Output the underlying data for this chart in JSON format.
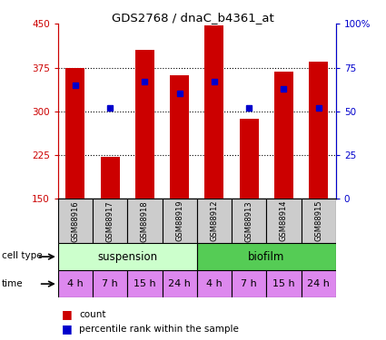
{
  "title": "GDS2768 / dnaC_b4361_at",
  "samples": [
    "GSM88916",
    "GSM88917",
    "GSM88918",
    "GSM88919",
    "GSM88912",
    "GSM88913",
    "GSM88914",
    "GSM88915"
  ],
  "count_values": [
    375,
    222,
    405,
    362,
    447,
    288,
    368,
    385
  ],
  "percentile_values": [
    65,
    52,
    67,
    60,
    67,
    52,
    63,
    52
  ],
  "y_min": 150,
  "y_max": 450,
  "y_ticks": [
    150,
    225,
    300,
    375,
    450
  ],
  "y2_ticks": [
    0,
    25,
    50,
    75,
    100
  ],
  "bar_color": "#cc0000",
  "blue_color": "#0000cc",
  "cell_type_labels": [
    "suspension",
    "biofilm"
  ],
  "cell_type_light": "#ccffcc",
  "cell_type_dark": "#55cc55",
  "time_labels": [
    "4 h",
    "7 h",
    "15 h",
    "24 h",
    "4 h",
    "7 h",
    "15 h",
    "24 h"
  ],
  "time_color": "#dd88ee",
  "gsm_bg_color": "#cccccc",
  "bar_width": 0.55,
  "grid_ticks": [
    225,
    300,
    375
  ]
}
